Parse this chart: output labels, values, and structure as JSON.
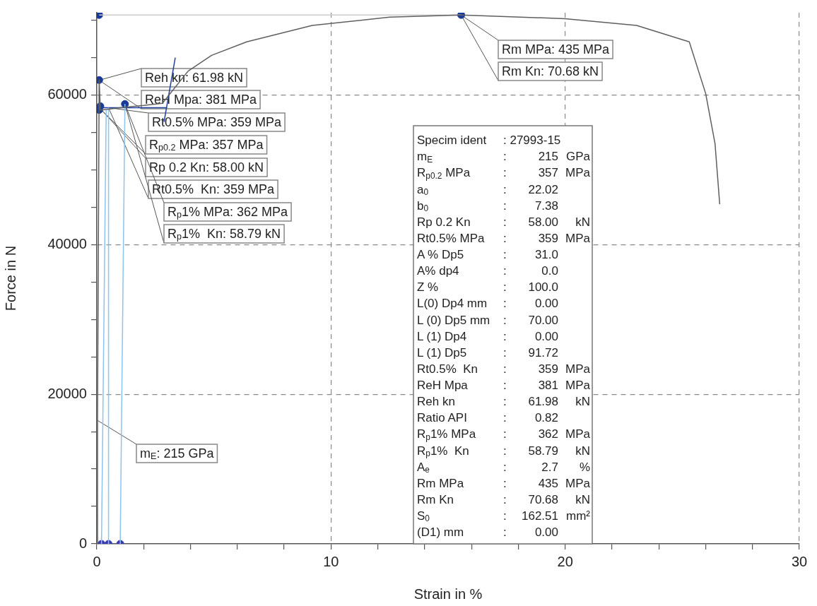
{
  "chart_data": {
    "type": "line",
    "xlabel": "Strain in %",
    "ylabel": "Force in N",
    "xlim": [
      0,
      30
    ],
    "ylim": [
      0,
      71000
    ],
    "xticks": [
      0,
      {
        "value": 2,
        "label": null
      },
      {
        "value": 4,
        "label": null
      },
      {
        "value": 6,
        "label": null
      },
      {
        "value": 8,
        "label": null
      },
      10,
      {
        "value": 12,
        "label": null
      },
      {
        "value": 14,
        "label": null
      },
      {
        "value": 16,
        "label": null
      },
      {
        "value": 18,
        "label": null
      },
      20,
      {
        "value": 22,
        "label": null
      },
      {
        "value": 24,
        "label": null
      },
      {
        "value": 26,
        "label": null
      },
      {
        "value": 28,
        "label": null
      },
      30
    ],
    "yticks": [
      0,
      {
        "value": 5000,
        "label": null
      },
      {
        "value": 10000,
        "label": null
      },
      {
        "value": 15000,
        "label": null
      },
      20000,
      {
        "value": 25000,
        "label": null
      },
      {
        "value": 30000,
        "label": null
      },
      {
        "value": 35000,
        "label": null
      },
      40000,
      {
        "value": 45000,
        "label": null
      },
      {
        "value": 50000,
        "label": null
      },
      {
        "value": 55000,
        "label": null
      },
      60000,
      {
        "value": 65000,
        "label": null
      },
      {
        "value": 70000,
        "label": null
      }
    ],
    "grid": true,
    "legend": false,
    "series": [
      {
        "color": "#5f5f5f",
        "x": [
          0,
          0.03,
          0.1,
          0.15,
          0.2,
          1.0,
          2.0,
          2.8,
          3.9,
          4.9,
          6.4,
          9.2,
          12.5,
          15.56,
          20.0,
          23.05,
          25.3,
          26.0,
          26.4,
          26.6
        ],
        "values": [
          0,
          16500,
          62000,
          58000,
          58000,
          58300,
          58600,
          58900,
          63200,
          65300,
          67100,
          69300,
          70400,
          70700,
          70200,
          69300,
          67100,
          60200,
          53500,
          45400
        ]
      },
      {
        "color": "#cccccc",
        "x": [
          0.1,
          15.56
        ],
        "values": [
          70700,
          70700
        ]
      },
      {
        "color": "#8ec3ee",
        "x": [
          0.2,
          0.4
        ],
        "values": [
          0,
          58000
        ]
      },
      {
        "color": "#8ec3ee",
        "x": [
          0.5,
          0.5
        ],
        "values": [
          0,
          58300
        ]
      },
      {
        "color": "#8ec3ee",
        "x": [
          1.0,
          1.2
        ],
        "values": [
          0,
          58800
        ]
      },
      {
        "color": "#1f3f9f",
        "x": [
          0.1,
          3.0
        ],
        "values": [
          58300,
          58300
        ]
      },
      {
        "color": "#1f3f9f",
        "x": [
          2.87,
          3.35
        ],
        "values": [
          56400,
          65000
        ]
      },
      {
        "type": "scatter",
        "marker": "circle",
        "color": "#1a3a9a",
        "x": [
          0.1,
          0.1,
          0.1,
          0.15,
          1.2,
          15.56
        ],
        "values": [
          70700,
          62000,
          58000,
          58500,
          58800,
          70700
        ]
      },
      {
        "type": "scatter",
        "marker": "circle",
        "color": "#3a3ab0",
        "x": [
          0.2,
          0.5,
          1.0
        ],
        "values": [
          0,
          0,
          0
        ]
      }
    ],
    "annotations": [
      {
        "text": "Reh kn: 61.98 kN",
        "x": 0.1,
        "y": 61980
      },
      {
        "text": "ReH Mpa: 381 MPa",
        "x": 0.1,
        "y": 61980
      },
      {
        "text": "Rt0.5% MPa: 359 MPa",
        "x": 0.5,
        "y": 58300
      },
      {
        "text": "R$_{p0.2}$ MPa: 357 MPa",
        "x": 0.2,
        "y": 58000
      },
      {
        "text": "Rp 0.2 Kn: 58.00 kN",
        "x": 0.2,
        "y": 58000
      },
      {
        "text": "Rt0.5%  Kn: 359 MPa",
        "x": 0.5,
        "y": 58300
      },
      {
        "text": "R$_{p}$1% MPa: 362 MPa",
        "x": 1.2,
        "y": 58790
      },
      {
        "text": "R$_{p}$1%  Kn: 58.79 kN",
        "x": 1.2,
        "y": 58790
      },
      {
        "text": "Rm MPa: 435 MPa",
        "x": 15.56,
        "y": 70680
      },
      {
        "text": "Rm Kn: 70.68 kN",
        "x": 15.56,
        "y": 70680
      },
      {
        "text": "m$_{E}$: 215 GPa",
        "x": 0.03,
        "y": 16500
      },
      "Specim ident\t: 27993-15",
      "m$_{E}$\t:\t215\tGPa",
      "R$_{p0.2}$ MPa\t:\t357\tMPa",
      "a$_{0}$\t:\t22.02",
      "b$_{0}$\t:\t7.38",
      "Rp 0.2 Kn\t:\t58.00\tkN",
      "Rt0.5% MPa\t:\t359\tMPa",
      "A % Dp5\t:\t31.0",
      "A% dp4\t:\t0.0",
      "Z %\t:\t100.0",
      "L(0) Dp4 mm\t:\t0.00",
      "L (0) Dp5 mm\t:\t70.00",
      "L (1) Dp4\t:\t0.00",
      "L (1) Dp5\t:\t91.72",
      "Rt0.5%  Kn\t:\t359\tMPa",
      "ReH Mpa\t:\t381\tMPa",
      "Reh kn\t:\t61.98\tkN",
      "Ratio API\t:\t0.82",
      "R$_{p}$1% MPa\t:\t362\tMPa",
      "R$_{p}$1%  Kn\t:\t58.79\tkN",
      "A$_{e}$\t:\t2.7\t%",
      "Rm MPa\t:\t435\tMPa",
      "Rm Kn\t:\t70.68\tkN",
      "S$_{0}$\t:\t162.51\tmm²",
      "(D1) mm\t:\t0.00"
    ]
  }
}
